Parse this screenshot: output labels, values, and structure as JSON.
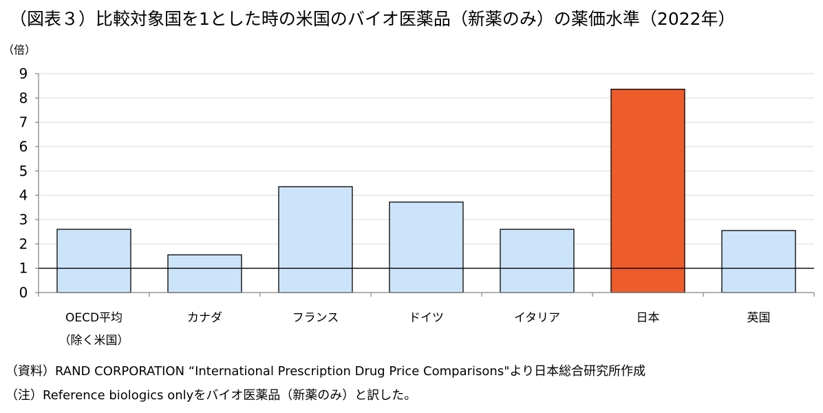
{
  "title": "（図表３）比較対象国を1とした時の米国のバイオ医薬品（新薬のみ）の薬価水準（2022年）",
  "chart_data": {
    "type": "bar",
    "title": "（図表３）比較対象国を1とした時の米国のバイオ医薬品（新薬のみ）の薬価水準（2022年）",
    "ylabel": "（倍）",
    "xlabel": "",
    "ylim": [
      0,
      9
    ],
    "yticks": [
      "0",
      "1",
      "2",
      "3",
      "4",
      "5",
      "6",
      "7",
      "8",
      "9"
    ],
    "grid": true,
    "reference_line": 1,
    "categories": [
      {
        "line1": "OECD平均",
        "line2": "（除く米国）"
      },
      {
        "line1": "カナダ",
        "line2": ""
      },
      {
        "line1": "フランス",
        "line2": ""
      },
      {
        "line1": "ドイツ",
        "line2": ""
      },
      {
        "line1": "イタリア",
        "line2": ""
      },
      {
        "line1": "日本",
        "line2": ""
      },
      {
        "line1": "英国",
        "line2": ""
      }
    ],
    "values": [
      2.6,
      1.55,
      4.35,
      3.72,
      2.6,
      8.36,
      2.55
    ],
    "colors": [
      "#cce4fa",
      "#cce4fa",
      "#cce4fa",
      "#cce4fa",
      "#cce4fa",
      "#ed5c2b",
      "#cce4fa"
    ]
  },
  "notes": {
    "source": "（資料）RAND CORPORATION “International Prescription Drug Price Comparisons\"より日本総合研究所作成",
    "note": "（注）Reference biologics onlyをバイオ医薬品（新薬のみ）と訳した。"
  }
}
